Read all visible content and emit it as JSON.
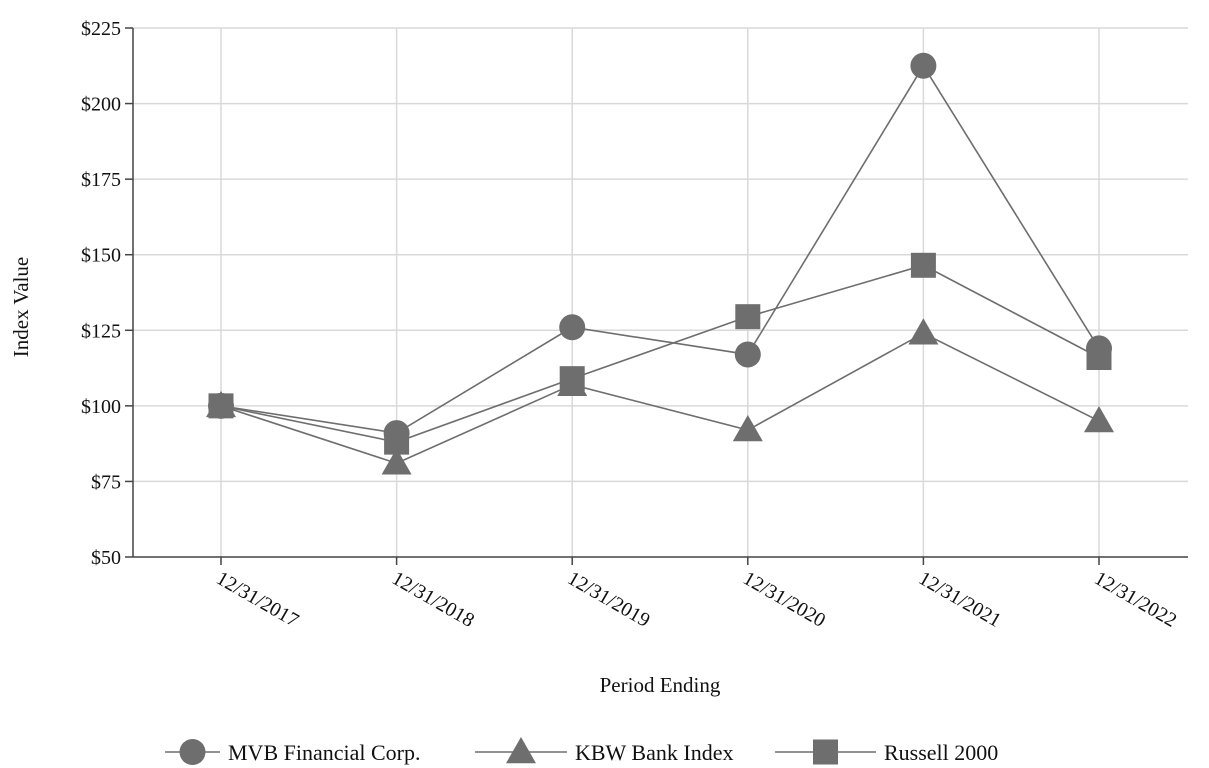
{
  "chart_data": {
    "type": "line",
    "xlabel": "Period Ending",
    "ylabel": "Index Value",
    "categories": [
      "12/31/2017",
      "12/31/2018",
      "12/31/2019",
      "12/31/2020",
      "12/31/2021",
      "12/31/2022"
    ],
    "ylim": [
      50,
      225
    ],
    "yticks": [
      50,
      75,
      100,
      125,
      150,
      175,
      200,
      225
    ],
    "ytick_labels": [
      "$50",
      "$75",
      "$100",
      "$125",
      "$150",
      "$175",
      "$200",
      "$225"
    ],
    "grid": true,
    "legend_position": "bottom",
    "series": [
      {
        "name": "MVB Financial Corp.",
        "marker": "circle",
        "values": [
          100,
          91,
          126,
          117,
          212.5,
          119
        ]
      },
      {
        "name": "KBW Bank Index",
        "marker": "triangle",
        "values": [
          100,
          81,
          107,
          92,
          124,
          95
        ]
      },
      {
        "name": "Russell 2000",
        "marker": "square",
        "values": [
          100,
          88,
          109,
          129.5,
          146.5,
          116
        ]
      }
    ],
    "colors": {
      "series": "#6e6e6e",
      "grid": "#d9d9d9",
      "axis": "#444444"
    }
  }
}
